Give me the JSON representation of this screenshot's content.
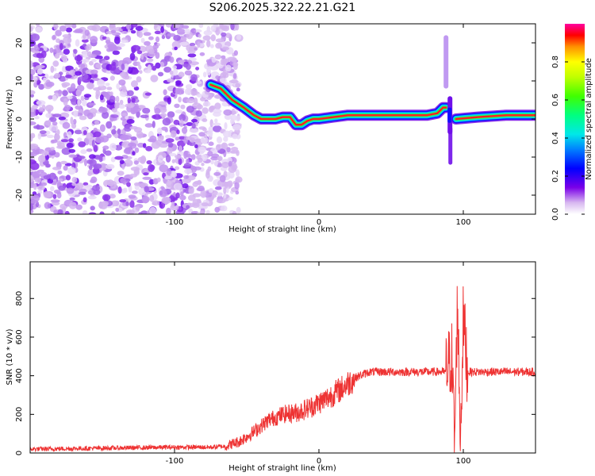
{
  "title": "S206.2025.322.22.21.G21",
  "chart_data": [
    {
      "type": "heatmap",
      "name": "spectrogram",
      "xlabel": "Height of straight line (km)",
      "ylabel": "Frequency (Hz)",
      "xlim": [
        -200,
        150
      ],
      "ylim": [
        -25,
        25
      ],
      "xticks": [
        -100,
        0,
        100
      ],
      "yticks": [
        -20,
        -10,
        0,
        10,
        20
      ],
      "colorbar": {
        "label": "Normalized spectral amplitude",
        "range": [
          0,
          1
        ],
        "ticks": [
          0.0,
          0.2,
          0.4,
          0.6,
          0.8
        ]
      },
      "noise_region_x": [
        -200,
        -62
      ],
      "ridge": {
        "x": [
          -75,
          -68,
          -60,
          -52,
          -45,
          -40,
          -35,
          -30,
          -25,
          -20,
          -16,
          -12,
          -8,
          -4,
          0,
          10,
          20,
          40,
          60,
          75,
          82,
          86,
          88
        ],
        "y": [
          9,
          8,
          5,
          3,
          1,
          0,
          0,
          0,
          0.5,
          0.5,
          -1.5,
          -1.5,
          -0.5,
          0,
          0,
          0.5,
          1,
          1,
          1,
          1,
          1.5,
          3,
          3
        ]
      },
      "ridge2": {
        "x": [
          95,
          110,
          130,
          150
        ],
        "y": [
          0,
          0.5,
          1,
          1
        ]
      },
      "spike": {
        "x": 88,
        "y_range": [
          -12,
          22
        ]
      }
    },
    {
      "type": "line",
      "name": "snr",
      "xlabel": "Height of straight line (km)",
      "ylabel": "SNR (10 * v/v)",
      "xlim": [
        -200,
        150
      ],
      "ylim": [
        0,
        990
      ],
      "xticks": [
        -100,
        0,
        100
      ],
      "yticks": [
        0,
        200,
        400,
        600,
        800
      ],
      "color": "#ee3333",
      "series": {
        "x": [
          -200,
          -150,
          -100,
          -75,
          -65,
          -55,
          -45,
          -35,
          -25,
          -15,
          -5,
          5,
          15,
          25,
          35,
          50,
          70,
          88,
          92,
          94,
          96,
          98,
          100,
          103,
          110,
          130,
          150
        ],
        "y": [
          20,
          25,
          30,
          30,
          35,
          60,
          110,
          170,
          200,
          210,
          240,
          280,
          330,
          390,
          420,
          420,
          420,
          420,
          500,
          50,
          800,
          60,
          700,
          420,
          420,
          420,
          420
        ]
      }
    }
  ]
}
